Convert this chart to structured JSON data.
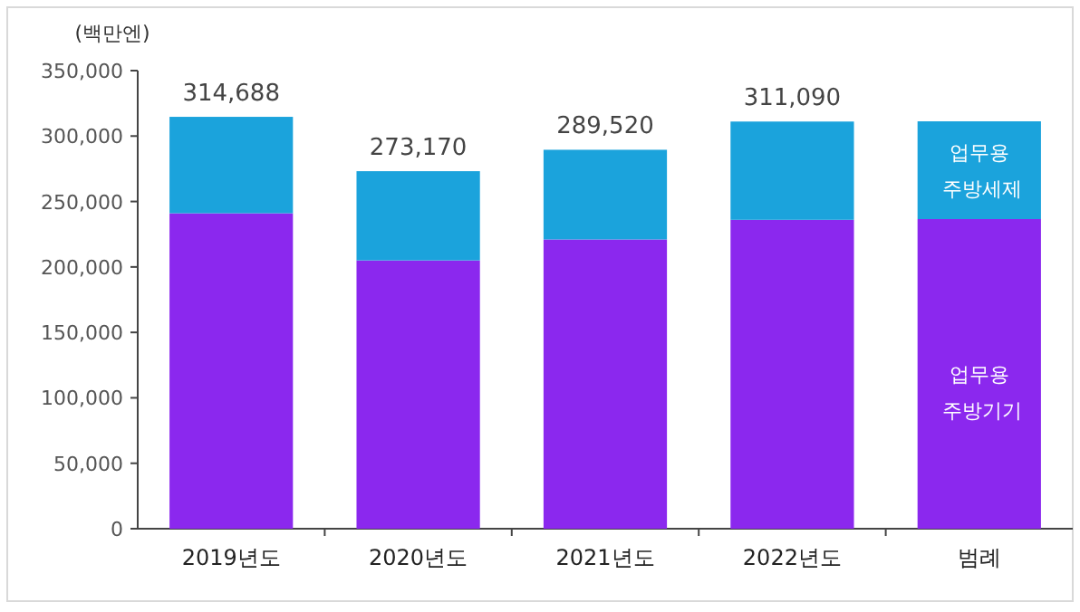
{
  "chart_data": {
    "type": "bar",
    "stacked": true,
    "ylabel": "(백만엔)",
    "categories": [
      "2019년도",
      "2020년도",
      "2021년도",
      "2022년도"
    ],
    "series": [
      {
        "name": "업무용 주방기기",
        "color": "#8b28ee",
        "values": [
          241000,
          205000,
          221000,
          236000
        ]
      },
      {
        "name": "업무용 주방세제",
        "color": "#1ba3dc",
        "values": [
          73688,
          68170,
          68520,
          75090
        ]
      }
    ],
    "totals": [
      "314,688",
      "273,170",
      "289,520",
      "311,090"
    ],
    "ylim": [
      0,
      350000
    ],
    "yticks": [
      {
        "value": 0,
        "label": "0"
      },
      {
        "value": 50000,
        "label": "50,000"
      },
      {
        "value": 100000,
        "label": "100,000"
      },
      {
        "value": 150000,
        "label": "150,000"
      },
      {
        "value": 200000,
        "label": "200,000"
      },
      {
        "value": 250000,
        "label": "250,000"
      },
      {
        "value": 300000,
        "label": "300,000"
      },
      {
        "value": 350000,
        "label": "350,000"
      }
    ],
    "legend": "right",
    "legend_title": "범례",
    "grid": false
  }
}
